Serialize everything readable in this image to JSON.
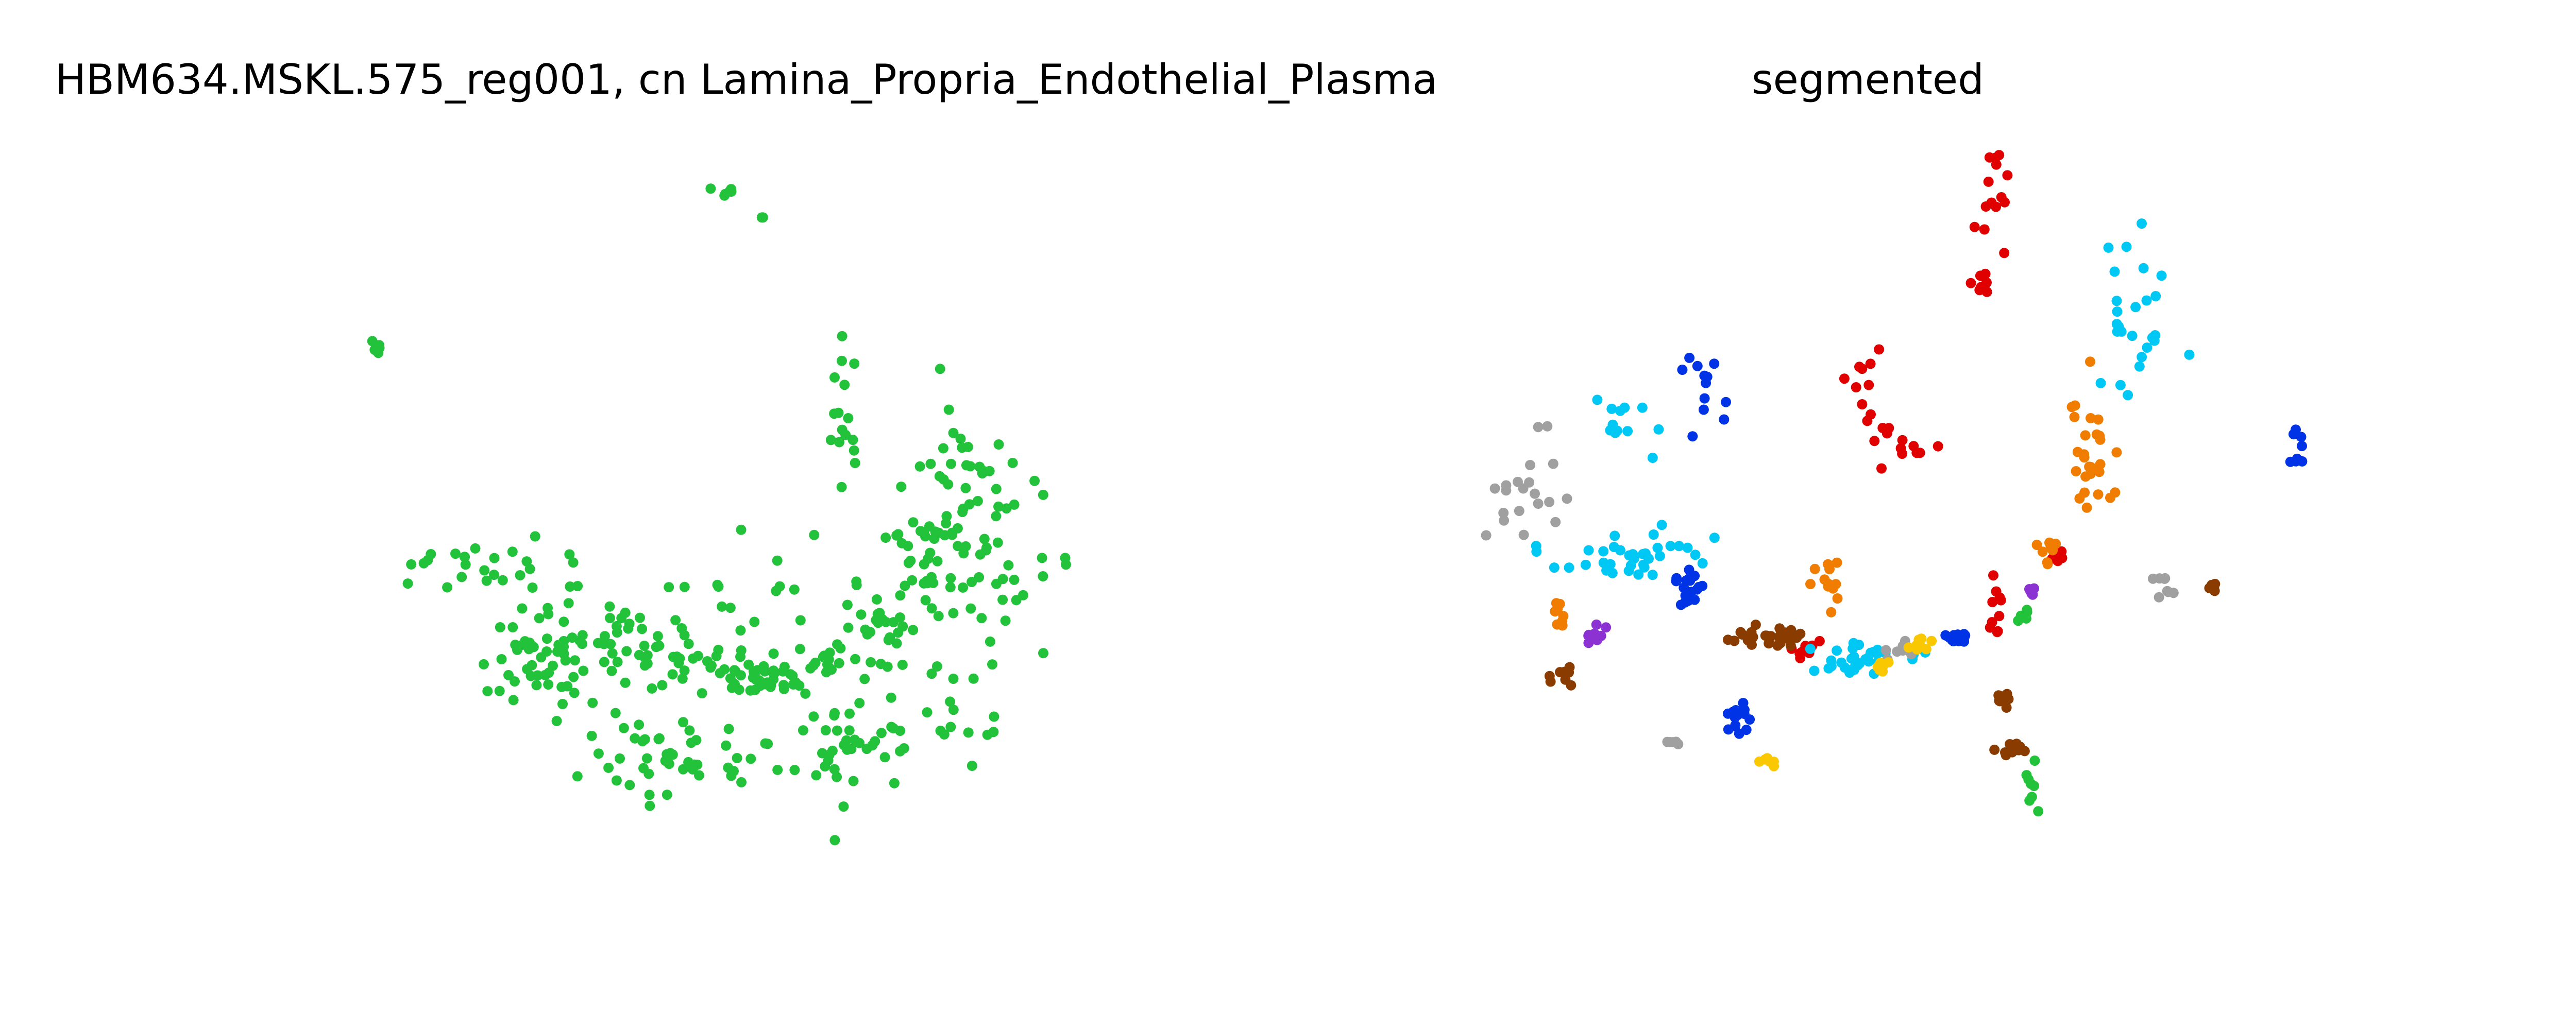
{
  "chart_data": [
    {
      "type": "scatter",
      "title": "HBM634.MSKL.575_reg001, cn Lamina_Propria_Endothelial_Plasma",
      "axes": "off",
      "grid": false,
      "xlim": [
        0,
        1000
      ],
      "ylim": [
        0,
        1000
      ],
      "y_direction": "down",
      "series": [
        {
          "color": "#22c33a",
          "clusters": [
            {
              "cx": 440,
              "cy": 50,
              "sx": 10,
              "sy": 5,
              "n": 6
            },
            {
              "cx": 495,
              "cy": 85,
              "sx": 12,
              "sy": 8,
              "n": 2
            },
            {
              "cx": 18,
              "cy": 270,
              "sx": 5,
              "sy": 8,
              "n": 5
            },
            {
              "cx": 580,
              "cy": 370,
              "sx": 10,
              "sy": 45,
              "n": 16
            },
            {
              "cx": 170,
              "cy": 570,
              "sx": 55,
              "sy": 20,
              "n": 26
            },
            {
              "cx": 250,
              "cy": 660,
              "sx": 60,
              "sy": 25,
              "n": 40
            },
            {
              "cx": 370,
              "cy": 700,
              "sx": 45,
              "sy": 15,
              "n": 30
            },
            {
              "cx": 480,
              "cy": 730,
              "sx": 35,
              "sy": 12,
              "n": 34
            },
            {
              "cx": 560,
              "cy": 705,
              "sx": 30,
              "sy": 15,
              "n": 18
            },
            {
              "cx": 625,
              "cy": 650,
              "sx": 30,
              "sy": 25,
              "n": 30
            },
            {
              "cx": 680,
              "cy": 560,
              "sx": 25,
              "sy": 40,
              "n": 36
            },
            {
              "cx": 720,
              "cy": 450,
              "sx": 25,
              "sy": 45,
              "n": 30
            },
            {
              "cx": 780,
              "cy": 560,
              "sx": 40,
              "sy": 60,
              "n": 30
            },
            {
              "cx": 330,
              "cy": 810,
              "sx": 60,
              "sy": 40,
              "n": 40
            },
            {
              "cx": 590,
              "cy": 820,
              "sx": 50,
              "sy": 40,
              "n": 40
            },
            {
              "cx": 200,
              "cy": 700,
              "sx": 35,
              "sy": 30,
              "n": 24
            },
            {
              "cx": 440,
              "cy": 620,
              "sx": 70,
              "sy": 60,
              "n": 24
            },
            {
              "cx": 720,
              "cy": 750,
              "sx": 40,
              "sy": 40,
              "n": 18
            },
            {
              "cx": 450,
              "cy": 850,
              "sx": 50,
              "sy": 20,
              "n": 14
            }
          ]
        }
      ]
    },
    {
      "type": "scatter",
      "title": "segmented",
      "axes": "off",
      "grid": false,
      "xlim": [
        0,
        1000
      ],
      "ylim": [
        0,
        1000
      ],
      "y_direction": "down",
      "series": [
        {
          "color": "#e00000",
          "clusters": [
            {
              "cx": 720,
              "cy": 60,
              "sx": 10,
              "sy": 40,
              "n": 14
            },
            {
              "cx": 700,
              "cy": 180,
              "sx": 6,
              "sy": 8,
              "n": 8
            },
            {
              "cx": 555,
              "cy": 340,
              "sx": 20,
              "sy": 40,
              "n": 12
            },
            {
              "cx": 610,
              "cy": 400,
              "sx": 25,
              "sy": 10,
              "n": 10
            },
            {
              "cx": 800,
              "cy": 555,
              "sx": 6,
              "sy": 8,
              "n": 10
            },
            {
              "cx": 720,
              "cy": 640,
              "sx": 6,
              "sy": 14,
              "n": 10
            },
            {
              "cx": 465,
              "cy": 685,
              "sx": 8,
              "sy": 6,
              "n": 10
            }
          ]
        },
        {
          "color": "#00c8f5",
          "clusters": [
            {
              "cx": 900,
              "cy": 230,
              "sx": 25,
              "sy": 60,
              "n": 26
            },
            {
              "cx": 210,
              "cy": 370,
              "sx": 25,
              "sy": 25,
              "n": 12
            },
            {
              "cx": 230,
              "cy": 550,
              "sx": 60,
              "sy": 20,
              "n": 36
            },
            {
              "cx": 540,
              "cy": 700,
              "sx": 40,
              "sy": 15,
              "n": 34
            }
          ]
        },
        {
          "color": "#f07d00",
          "clusters": [
            {
              "cx": 850,
              "cy": 430,
              "sx": 20,
              "sy": 50,
              "n": 28
            },
            {
              "cx": 790,
              "cy": 540,
              "sx": 8,
              "sy": 15,
              "n": 8
            },
            {
              "cx": 495,
              "cy": 590,
              "sx": 8,
              "sy": 25,
              "n": 12
            },
            {
              "cx": 135,
              "cy": 640,
              "sx": 5,
              "sy": 15,
              "n": 8
            }
          ]
        },
        {
          "color": "#0032e6",
          "clusters": [
            {
              "cx": 330,
              "cy": 340,
              "sx": 12,
              "sy": 35,
              "n": 12
            },
            {
              "cx": 1130,
              "cy": 410,
              "sx": 6,
              "sy": 15,
              "n": 8
            },
            {
              "cx": 305,
              "cy": 605,
              "sx": 12,
              "sy": 15,
              "n": 18
            },
            {
              "cx": 665,
              "cy": 670,
              "sx": 12,
              "sy": 5,
              "n": 14
            },
            {
              "cx": 370,
              "cy": 780,
              "sx": 10,
              "sy": 10,
              "n": 14
            }
          ]
        },
        {
          "color": "#a0a0a0",
          "clusters": [
            {
              "cx": 75,
              "cy": 460,
              "sx": 30,
              "sy": 45,
              "n": 20
            },
            {
              "cx": 600,
              "cy": 685,
              "sx": 15,
              "sy": 8,
              "n": 8
            },
            {
              "cx": 940,
              "cy": 600,
              "sx": 8,
              "sy": 8,
              "n": 8
            },
            {
              "cx": 290,
              "cy": 815,
              "sx": 5,
              "sy": 5,
              "n": 5
            }
          ]
        },
        {
          "color": "#8a3c00",
          "clusters": [
            {
              "cx": 410,
              "cy": 670,
              "sx": 25,
              "sy": 8,
              "n": 28
            },
            {
              "cx": 140,
              "cy": 720,
              "sx": 8,
              "sy": 8,
              "n": 10
            },
            {
              "cx": 1010,
              "cy": 600,
              "sx": 6,
              "sy": 5,
              "n": 6
            },
            {
              "cx": 730,
              "cy": 750,
              "sx": 5,
              "sy": 8,
              "n": 8
            },
            {
              "cx": 745,
              "cy": 825,
              "sx": 12,
              "sy": 5,
              "n": 12
            }
          ]
        },
        {
          "color": "#fac800",
          "clusters": [
            {
              "cx": 620,
              "cy": 675,
              "sx": 8,
              "sy": 6,
              "n": 10
            },
            {
              "cx": 567,
              "cy": 710,
              "sx": 4,
              "sy": 6,
              "n": 6
            },
            {
              "cx": 415,
              "cy": 840,
              "sx": 8,
              "sy": 5,
              "n": 6
            }
          ]
        },
        {
          "color": "#8c32d2",
          "clusters": [
            {
              "cx": 185,
              "cy": 665,
              "sx": 12,
              "sy": 8,
              "n": 10
            },
            {
              "cx": 770,
              "cy": 610,
              "sx": 5,
              "sy": 8,
              "n": 6
            }
          ]
        },
        {
          "color": "#22c33a",
          "clusters": [
            {
              "cx": 755,
              "cy": 640,
              "sx": 5,
              "sy": 6,
              "n": 6
            },
            {
              "cx": 770,
              "cy": 880,
              "sx": 4,
              "sy": 15,
              "n": 8
            }
          ]
        }
      ]
    }
  ]
}
